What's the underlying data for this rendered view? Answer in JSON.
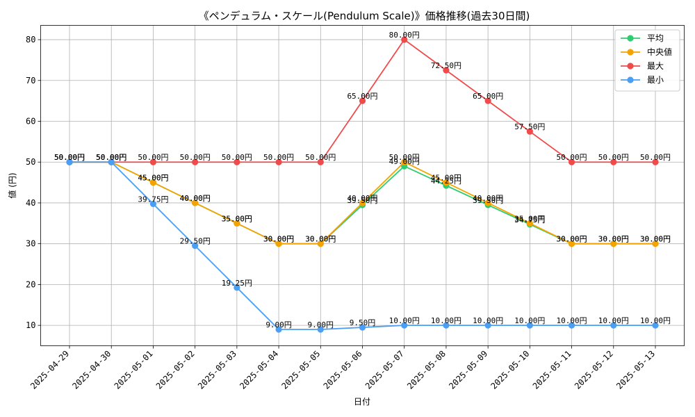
{
  "chart_data": {
    "type": "line",
    "title": "《ペンデュラム・スケール(Pendulum Scale)》価格推移(過去30日間)",
    "xlabel": "日付",
    "ylabel": "値 (円)",
    "ylim": [
      5,
      83.5
    ],
    "yticks": [
      10,
      20,
      30,
      40,
      50,
      60,
      70,
      80
    ],
    "grid": true,
    "legend_position": "top-right",
    "value_suffix": "円",
    "categories": [
      "2025-04-29",
      "2025-04-30",
      "2025-05-01",
      "2025-05-02",
      "2025-05-03",
      "2025-05-04",
      "2025-05-05",
      "2025-05-06",
      "2025-05-07",
      "2025-05-08",
      "2025-05-09",
      "2025-05-10",
      "2025-05-11",
      "2025-05-12",
      "2025-05-13"
    ],
    "series": [
      {
        "name": "平均",
        "color": "#2ecc71",
        "values": [
          50.0,
          50.0,
          45.0,
          40.0,
          35.0,
          30.0,
          30.0,
          39.5,
          49.0,
          44.25,
          39.5,
          34.75,
          30.0,
          30.0,
          30.0
        ]
      },
      {
        "name": "中央値",
        "color": "#f5a300",
        "values": [
          50.0,
          50.0,
          45.0,
          40.0,
          35.0,
          30.0,
          30.0,
          40.0,
          50.0,
          45.0,
          40.0,
          35.0,
          30.0,
          30.0,
          30.0
        ]
      },
      {
        "name": "最大",
        "color": "#ef4b4b",
        "values": [
          50.0,
          50.0,
          50.0,
          50.0,
          50.0,
          50.0,
          50.0,
          65.0,
          80.0,
          72.5,
          65.0,
          57.5,
          50.0,
          50.0,
          50.0
        ]
      },
      {
        "name": "最小",
        "color": "#4a9ff5",
        "values": [
          50.0,
          50.0,
          39.75,
          29.5,
          19.25,
          9.0,
          9.0,
          9.5,
          10.0,
          10.0,
          10.0,
          10.0,
          10.0,
          10.0,
          10.0
        ]
      }
    ]
  }
}
